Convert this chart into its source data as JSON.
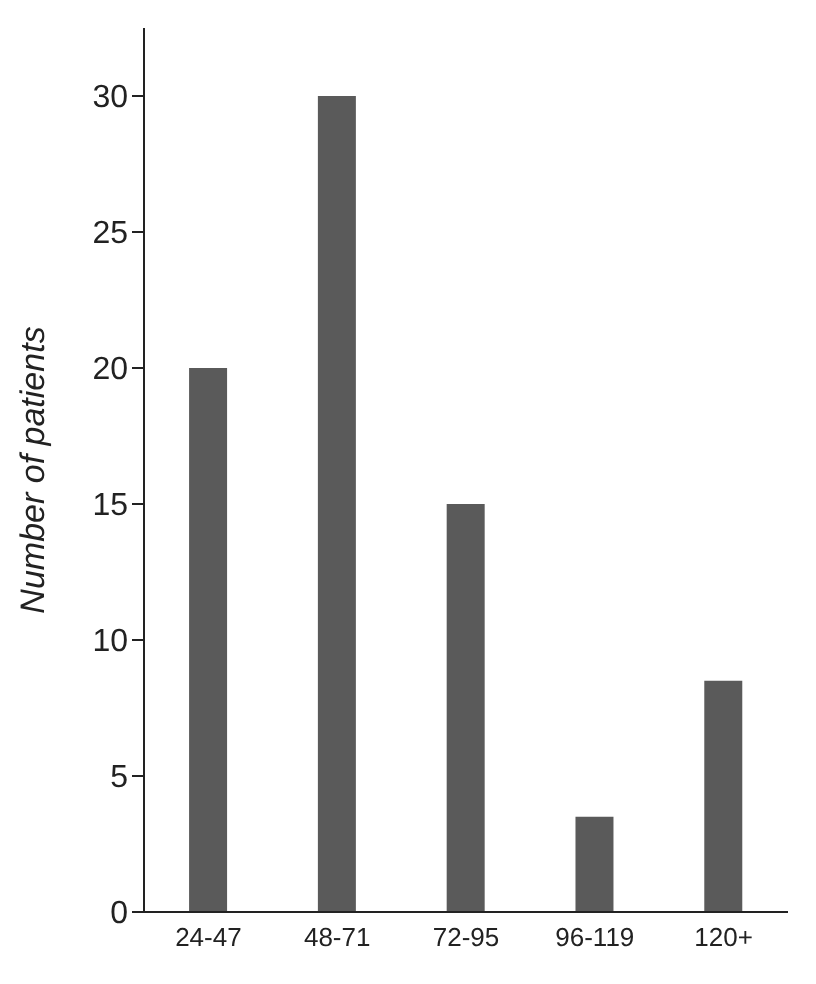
{
  "chart_data": {
    "type": "bar",
    "ylabel": "Number of patients",
    "categories": [
      "24-47",
      "48-71",
      "72-95",
      "96-119",
      "120+"
    ],
    "values": [
      20,
      30,
      15,
      3.5,
      8.5
    ],
    "color": "#5a5a5a",
    "ylim": [
      0,
      32.5
    ],
    "yticks": [
      0,
      5,
      10,
      15,
      20,
      25,
      30
    ]
  }
}
